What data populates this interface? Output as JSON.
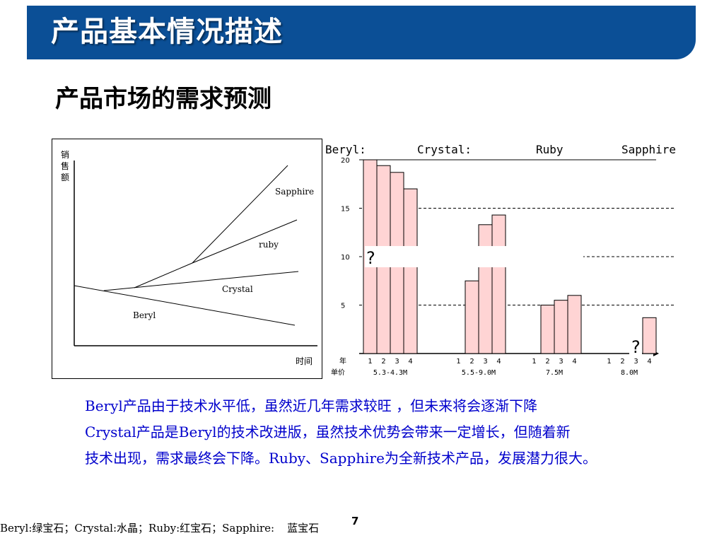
{
  "title": "产品基本情况描述",
  "subtitle": "产品市场的需求预测",
  "trend_chart": {
    "ylabel": "销售额",
    "xlabel": "时间",
    "lines": [
      "Sapphire",
      "ruby",
      "Crystal",
      "Beryl"
    ]
  },
  "chart_data": {
    "type": "bar",
    "groups": [
      "Beryl:",
      "Crystal:",
      "Ruby",
      "Sapphire"
    ],
    "categories": [
      "1",
      "2",
      "3",
      "4"
    ],
    "yticks": [
      5,
      10,
      15,
      20
    ],
    "ylim": [
      0,
      20
    ],
    "row_labels": [
      "年",
      "单价"
    ],
    "prices": [
      "5.3-4.3M",
      "5.5-9.0M",
      "7.5M",
      "8.0M"
    ],
    "series": [
      {
        "group": "Beryl:",
        "values": [
          20,
          19.4,
          18.7,
          17
        ]
      },
      {
        "group": "Crystal:",
        "values": [
          null,
          7.5,
          13.3,
          14.3
        ]
      },
      {
        "group": "Ruby",
        "values": [
          null,
          5,
          5.5,
          6
        ]
      },
      {
        "group": "Sapphire",
        "values": [
          null,
          null,
          null,
          3.7
        ]
      }
    ],
    "annotations": [
      "?",
      "?"
    ],
    "bar_fill": "#ffd4d4",
    "grid": "dashed"
  },
  "description": [
    "Beryl产品由于技术水平低，虽然近几年需求较旺 ，但未来将会逐渐下降",
    "Crystal产品是Beryl的技术改进版，虽然技术优势会带来一定增长，但随着新",
    "技术出现，需求最终会下降。Ruby、Sapphire为全新技术产品，发展潜力很大。"
  ],
  "footnote": "Beryl:绿宝石；Crystal:水晶；Ruby:红宝石；Sapphire:",
  "footnote_tail": "蓝宝石",
  "page_number": "7",
  "colors": {
    "title_bar": "#0b4f96",
    "description_text": "#0000cc"
  }
}
